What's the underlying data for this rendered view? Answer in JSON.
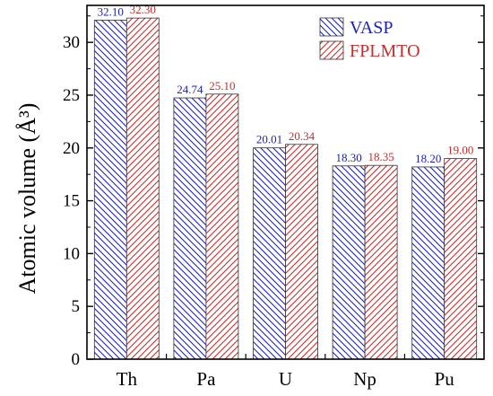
{
  "chart_data": {
    "type": "bar",
    "categories": [
      "Th",
      "Pa",
      "U",
      "Np",
      "Pu"
    ],
    "series": [
      {
        "name": "VASP",
        "values": [
          32.1,
          24.74,
          20.01,
          18.3,
          18.2
        ],
        "labels": [
          "32.10",
          "24.74",
          "20.01",
          "18.30",
          "18.20"
        ],
        "color": "#1f22b5",
        "hatch": "diagonal-down"
      },
      {
        "name": "FPLMTO",
        "values": [
          32.3,
          25.1,
          20.34,
          18.35,
          19.0
        ],
        "labels": [
          "32.30",
          "25.10",
          "20.34",
          "18.35",
          "19.00"
        ],
        "color": "#c42e2e",
        "hatch": "diagonal-up"
      }
    ],
    "title": "",
    "xlabel": "",
    "ylabel": "Atomic volume (Å³)",
    "ylim": [
      0,
      33.5
    ],
    "yticks": [
      "0",
      "5",
      "10",
      "15",
      "20",
      "25",
      "30"
    ],
    "grid": false,
    "legend_position": "top-right"
  }
}
